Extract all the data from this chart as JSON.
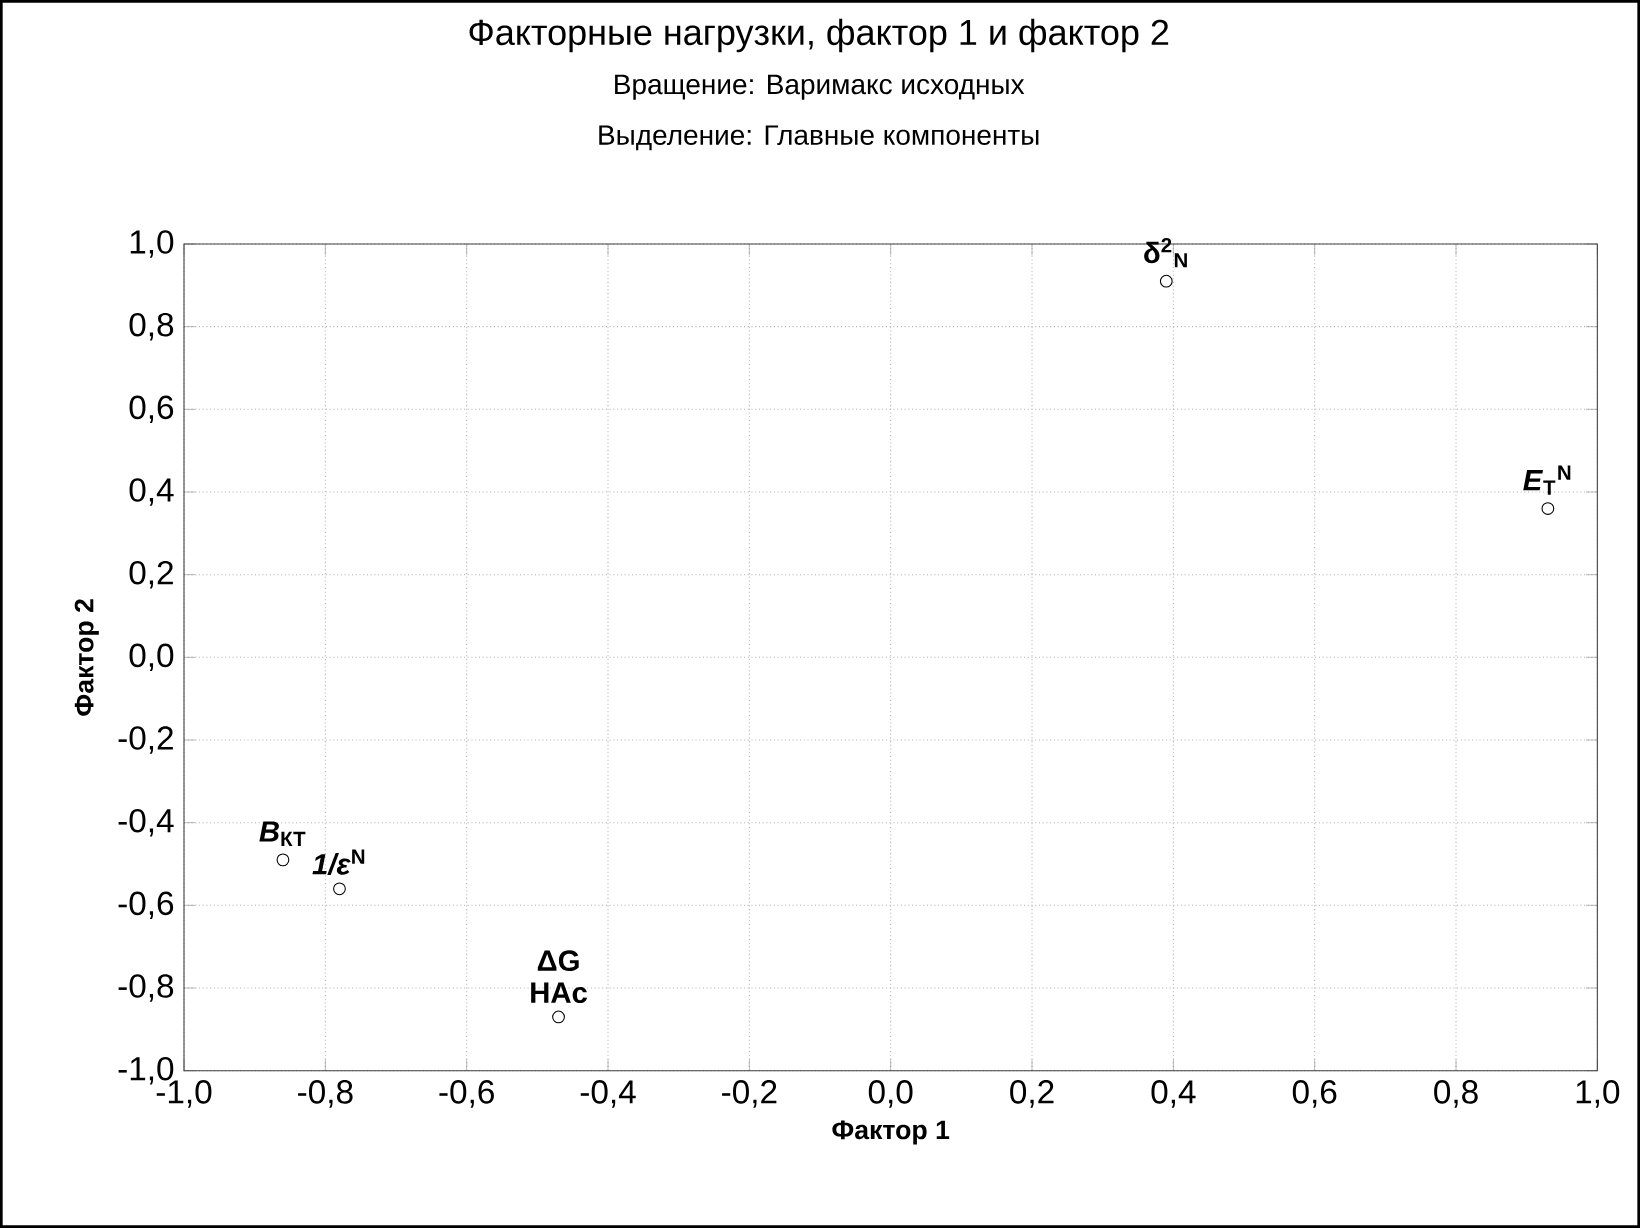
{
  "chart_data": {
    "type": "scatter",
    "title": "Факторные нагрузки, фактор 1 и фактор   2",
    "subtitle": "Вращение: Варимакс исходных",
    "xlabel": "Фактор 1",
    "ylabel": "Фактор 2",
    "x": [
      0.39,
      0.93,
      -0.86,
      -0.78,
      -0.47
    ],
    "series": [
      {
        "color": "#000000",
        "values": [
          0.91,
          0.36,
          -0.49,
          -0.56,
          -0.87
        ]
      }
    ],
    "xlim": [
      -1,
      1
    ],
    "ylim": [
      -1,
      1
    ],
    "xticks": [
      {
        "value": -1,
        "label": "-1,0"
      },
      {
        "value": -0.8,
        "label": "-0,8"
      },
      {
        "value": -0.6,
        "label": "-0,6"
      },
      {
        "value": -0.4,
        "label": "-0,4"
      },
      {
        "value": -0.2,
        "label": "-0,2"
      },
      {
        "value": 0,
        "label": "0,0"
      },
      {
        "value": 0.2,
        "label": "0,2"
      },
      {
        "value": 0.4,
        "label": "0,4"
      },
      {
        "value": 0.6,
        "label": "0,6"
      },
      {
        "value": 0.8,
        "label": "0,8"
      },
      {
        "value": 1,
        "label": "1,0"
      }
    ],
    "yticks": [
      {
        "value": -1,
        "label": "-1,0"
      },
      {
        "value": -0.8,
        "label": "-0,8"
      },
      {
        "value": -0.6,
        "label": "-0,6"
      },
      {
        "value": -0.4,
        "label": "-0,4"
      },
      {
        "value": -0.2,
        "label": "-0,2"
      },
      {
        "value": 0,
        "label": "0,0"
      },
      {
        "value": 0.2,
        "label": "0,2"
      },
      {
        "value": 0.4,
        "label": "0,4"
      },
      {
        "value": 0.6,
        "label": "0,6"
      },
      {
        "value": 0.8,
        "label": "0,8"
      },
      {
        "value": 1,
        "label": "1,0"
      }
    ],
    "grid": true,
    "marker": "circle",
    "annotations": [
      "Выделение: Главные компоненты",
      {
        "text": "δ$^{2}$$_{N}$",
        "x": 0.39,
        "y": 0.91
      },
      {
        "text": "*E*$_{T}$$^{N}$",
        "x": 0.93,
        "y": 0.36
      },
      {
        "text": "*B*$_{КТ}$",
        "x": -0.86,
        "y": -0.49
      },
      {
        "text": "*1/ε*$^{N}$",
        "x": -0.78,
        "y": -0.56
      },
      {
        "text": "ΔG HAc",
        "x": -0.47,
        "y": -0.87
      }
    ]
  }
}
